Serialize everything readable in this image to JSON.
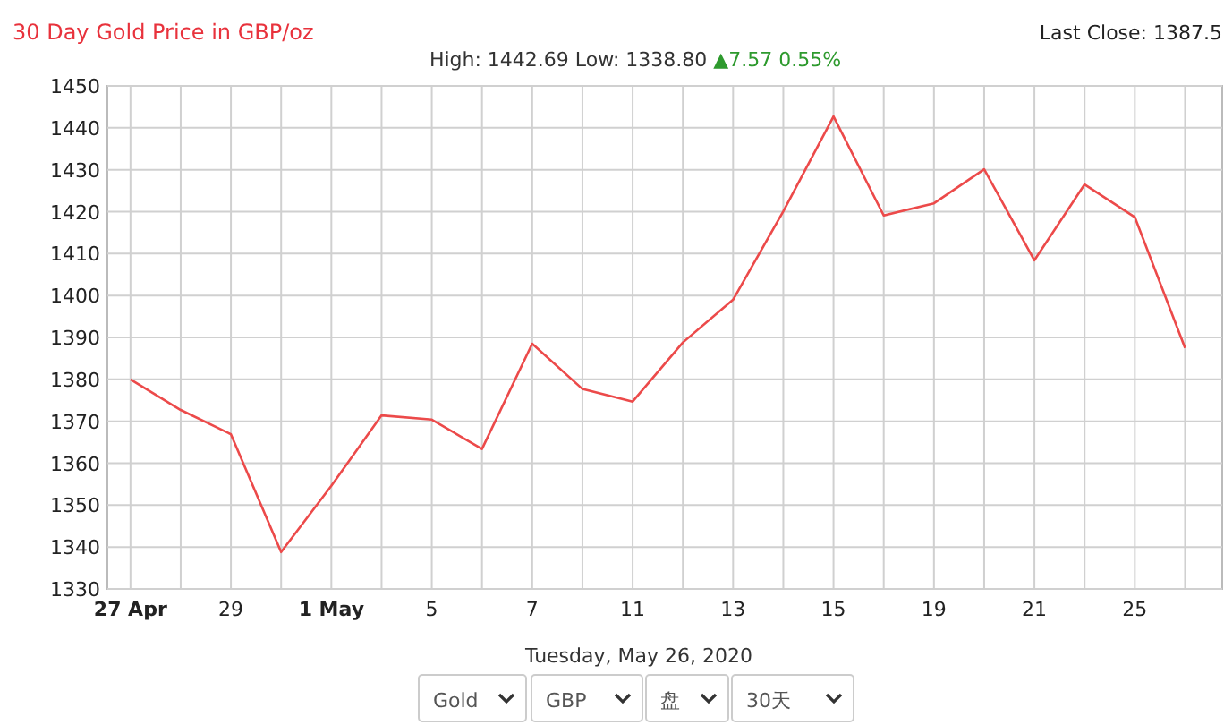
{
  "chart_data": {
    "type": "line",
    "title": "30 Day Gold Price in GBP/oz",
    "annotations": [
      "High: 1442.69 Low: 1338.80",
      "▲7.57 0.55%",
      "Last Close: 1387.5",
      "Tuesday, May 26, 2020",
      "Gold",
      "GBP",
      "盘",
      "30天"
    ],
    "categories": [
      "27 Apr",
      null,
      "29",
      null,
      "1 May",
      null,
      "5",
      null,
      "7",
      null,
      "11",
      null,
      "13",
      null,
      "15",
      null,
      "19",
      null,
      "21",
      null,
      "25",
      null
    ],
    "series": [
      {
        "color": "#ec4a4a",
        "values": [
          1380.0,
          1372.7,
          1366.9,
          1338.8,
          1354.6,
          1371.4,
          1370.4,
          1363.4,
          1388.5,
          1377.7,
          1374.7,
          1388.8,
          1399.0,
          1420.1,
          1442.7,
          1419.1,
          1422.0,
          1430.1,
          1408.4,
          1426.5,
          1418.7,
          1387.5
        ]
      }
    ],
    "ylim": [
      1330,
      1450
    ],
    "yticks": [
      1330,
      1340,
      1350,
      1360,
      1370,
      1380,
      1390,
      1400,
      1410,
      1420,
      1430,
      1440,
      1450
    ],
    "grid": true,
    "marker": "none",
    "line_style": "solid"
  }
}
